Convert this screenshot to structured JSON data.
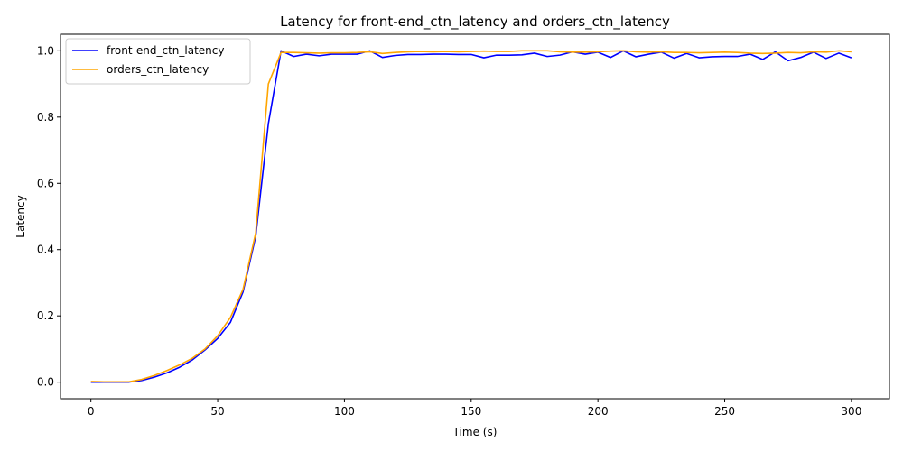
{
  "chart_data": {
    "type": "line",
    "title": "Latency for front-end_ctn_latency and orders_ctn_latency",
    "xlabel": "Time (s)",
    "ylabel": "Latency",
    "xlim": [
      -12,
      315
    ],
    "ylim": [
      -0.05,
      1.05
    ],
    "xticks": [
      0,
      50,
      100,
      150,
      200,
      250,
      300
    ],
    "yticks": [
      0.0,
      0.2,
      0.4,
      0.6,
      0.8,
      1.0
    ],
    "xtick_labels": [
      "0",
      "50",
      "100",
      "150",
      "200",
      "250",
      "300"
    ],
    "ytick_labels": [
      "0.0",
      "0.2",
      "0.4",
      "0.6",
      "0.8",
      "1.0"
    ],
    "grid": false,
    "legend_position": "top-left",
    "x": [
      0,
      5,
      10,
      15,
      20,
      25,
      30,
      35,
      40,
      45,
      50,
      55,
      60,
      65,
      70,
      75,
      80,
      85,
      90,
      95,
      100,
      105,
      110,
      115,
      120,
      125,
      130,
      135,
      140,
      145,
      150,
      155,
      160,
      165,
      170,
      175,
      180,
      185,
      190,
      195,
      200,
      205,
      210,
      215,
      220,
      225,
      230,
      235,
      240,
      245,
      250,
      255,
      260,
      265,
      270,
      275,
      280,
      285,
      290,
      295,
      300
    ],
    "series": [
      {
        "name": "front-end_ctn_latency",
        "color": "#0000ff",
        "values": [
          0.0,
          0.0,
          0.0,
          0.0,
          0.005,
          0.015,
          0.028,
          0.045,
          0.067,
          0.097,
          0.132,
          0.18,
          0.272,
          0.44,
          0.78,
          1.0,
          0.983,
          0.99,
          0.985,
          0.99,
          0.99,
          0.99,
          1.0,
          0.98,
          0.986,
          0.989,
          0.989,
          0.99,
          0.99,
          0.989,
          0.989,
          0.979,
          0.987,
          0.987,
          0.988,
          0.993,
          0.983,
          0.987,
          0.997,
          0.99,
          0.996,
          0.98,
          1.0,
          0.982,
          0.99,
          0.996,
          0.978,
          0.992,
          0.979,
          0.982,
          0.983,
          0.983,
          0.99,
          0.974,
          0.997,
          0.97,
          0.98,
          0.996,
          0.977,
          0.993,
          0.979
        ]
      },
      {
        "name": "orders_ctn_latency",
        "color": "#ffa500",
        "values": [
          0.002,
          0.001,
          0.001,
          0.001,
          0.008,
          0.02,
          0.035,
          0.052,
          0.072,
          0.1,
          0.14,
          0.195,
          0.28,
          0.45,
          0.9,
          0.995,
          0.995,
          0.994,
          0.993,
          0.994,
          0.994,
          0.995,
          0.997,
          0.992,
          0.995,
          0.997,
          0.998,
          0.997,
          0.998,
          0.997,
          0.998,
          0.999,
          0.998,
          0.998,
          1.0,
          1.0,
          1.0,
          0.997,
          0.996,
          0.996,
          0.997,
          0.999,
          1.0,
          0.997,
          0.996,
          0.997,
          0.995,
          0.995,
          0.994,
          0.995,
          0.996,
          0.995,
          0.993,
          0.992,
          0.993,
          0.995,
          0.994,
          0.997,
          0.996,
          1.0,
          0.997
        ]
      }
    ]
  }
}
